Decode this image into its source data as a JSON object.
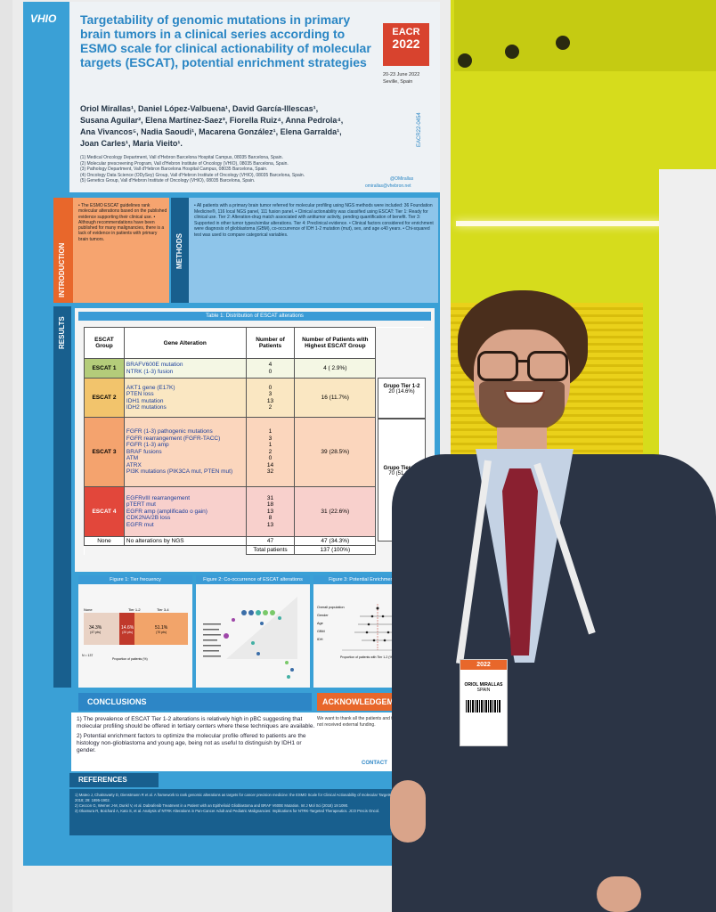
{
  "poster": {
    "logo_text": "VHIO",
    "title": "Targetability of genomic mutations in primary brain tumors in a clinical series according to ESMO scale for clinical actionability of molecular targets (ESCAT), potential enrichment strategies",
    "authors": "Oriol Mirallas¹, Daniel López-Valbuena¹, David García-Illescas¹, Susana Aguilar², Elena Martínez-Saez³, Fiorella Ruiz⁴, Anna Pedrola⁴, Ana Vivancos⁵, Nadia Saoudi¹, Macarena González¹, Elena Garralda¹, Joan Carles¹, Maria Vieito¹.",
    "affiliations": [
      "(1) Medical Oncology Department, Vall d'Hebron Barcelona Hospital Campus, 08035 Barcelona, Spain.",
      "(2) Molecular prescreening Program, Vall d'Hebron Institute of Oncology (VHIO), 08035 Barcelona, Spain.",
      "(3) Pathology Department, Vall d'Hebron Barcelona Hospital Campus, 08035 Barcelona, Spain.",
      "(4) Oncology Data Science (ODySey) Group, Vall d'Hebron Institute of Oncology (VHIO), 08035 Barcelona, Spain.",
      "(5) Genetics Group, Vall d'Hebron Institute of Oncology (VHIO), 08035 Barcelona, Spain."
    ],
    "eacr": {
      "name": "EACR",
      "year": "2022",
      "dates": "20-23 June 2022",
      "city": "Seville, Spain",
      "code": "EACR22-0454"
    },
    "twitter": "@OMirallas",
    "email": "omirallas@vhebron.net",
    "intro": {
      "label": "INTRODUCTION",
      "text": "• The ESMO ESCAT guidelines rank molecular alterations based on the published evidence supporting their clinical use. • Although recommendations have been published for many malignancies, there is a lack of evidence in patients with primary brain tumors."
    },
    "methods": {
      "label": "METHODS",
      "text": "• All patients with a primary brain tumor referred for molecular profiling using NGS methods were included: 36 Foundation Medicine®, 116 local NGS panel, 111 fusion panel. • Clinical actionability was classified using ESCAT: Tier 1: Ready for clinical use. Tier 2: Alteration-drug match associated with antitumor activity, pending quantification of benefit. Tier 3: Supported in other tumor types/similar alterations. Tier 4: Preclinical evidence. • Clinical factors considered for enrichment were diagnosis of glioblastoma (GBM), co-occurrence of IDH 1-2 mutation (mut), sex, and age ≤40 years. • Chi-squared test was used to compare categorical variables."
    },
    "results_label": "RESULTS",
    "table": {
      "title": "Table 1: Distribution of ESCAT alterations",
      "headers": [
        "ESCAT Group",
        "Gene Alteration",
        "Number of Patients",
        "Number of Patients with Highest ESCAT Group"
      ],
      "groups": [
        {
          "label": "ESCAT 1",
          "genes": "BRAFV600E mutation\nNTRK (1-3) fusion",
          "counts": "4\n0",
          "highest": "4 ( 2.9%)"
        },
        {
          "label": "ESCAT 2",
          "genes": "AKT1 gene (E17K)\nPTEN loss\nIDH1 mutation\nIDH2 mutations",
          "counts": "0\n3\n13\n2",
          "highest": "16 (11.7%)"
        },
        {
          "label": "ESCAT 3",
          "genes": "FGFR (1-3) pathogenic mutations\nFGFR rearrangement (FGFR-TACC)\nFGFR (1-3) amp\nBRAF fusions\nATM\nATRX\nPI3K mutations (PIK3CA mut, PTEN mut)",
          "counts": "1\n3\n1\n2\n0\n14\n32",
          "highest": "39 (28.5%)"
        },
        {
          "label": "ESCAT 4",
          "genes": "EGFRvIII rearrangement\npTERT mut\nEGFR amp (amplificado o gain)\nCDK2NA/2B loss\nEGFR mut",
          "counts": "31\n18\n13\n8\n13",
          "highest": "31 (22.6%)"
        }
      ],
      "none_row": {
        "label": "None",
        "genes": "No alterations by NGS",
        "count": "47",
        "highest": "47 (34.3%)"
      },
      "total_row": {
        "label": "Total patients",
        "value": "137 (100%)"
      },
      "tier_groups": [
        {
          "label": "Grupo Tier 1-2",
          "value": "20 (14.6%)"
        },
        {
          "label": "Grupo Tier 3-4",
          "value": "70 (51.1%)"
        }
      ]
    },
    "figures": {
      "fig1": {
        "title": "Figure 1: Tier frecuency",
        "cats": [
          "None",
          "Tier 1-2",
          "Tier 3-4"
        ],
        "pcts": [
          "34.3%",
          "14.6%",
          "51.1%"
        ],
        "ns": [
          "(47 pts)",
          "(20 pts)",
          "(70 pts)"
        ],
        "xlabel": "Proportion of patients (%)",
        "nlabel": "N = 137"
      },
      "fig2": {
        "title": "Figure 2: Co-occurrence of ESCAT alterations"
      },
      "fig3": {
        "title": "Figure 3: Potential Enrichment Factors",
        "rows": [
          "Overall population",
          "Gender",
          "Age",
          "GBM",
          "IDH"
        ],
        "xlabel": "Proportion of patients with Tier 1-2 (%)"
      }
    },
    "conclusions": {
      "heading": "CONCLUSIONS",
      "items": [
        "1) The prevalence of ESCAT Tier 1-2 alterations is relatively high in pBC suggesting that molecular profiling should be offered in tertiary centers where these techniques are available.",
        "2) Potential enrichment factors to optimize the molecular profile offered to patients are the histology non-glioblastoma and young age, being not as useful to distinguish by IDH1 or gender."
      ]
    },
    "acknowledgements": {
      "heading": "ACKNOWLEDGEMENTS",
      "text": "We want to thank all the patients and their... The study has not received external funding."
    },
    "contact_label": "CONTACT",
    "references": {
      "heading": "REFERENCES",
      "items": [
        "1) Mateo J, Chakravarty D, Dienstmann R et al. A framework to rank genomic alterations as targets for cancer precision medicine: the ESMO Scale for Clinical Actionability of molecular Targets (ESCAT). Ann Oncol 2018; 29: 1895-1902.",
        "2) Ceccon G, Werner J-M, Dunkl V, et al. Dabrafenib Treatment in a Patient with an Epithelioid Glioblastoma and BRAF V600E Mutation. Int J Mol Sci (2018) 19:1090.",
        "3) Okamura R, Boichard A, Kato S, et al. Analysis of NTRK Alterations in Pan-Cancer Adult and Pediatric Malignancies: Implications for NTRK-Targeted Therapeutics. JCO Precis Oncol."
      ]
    }
  },
  "badge": {
    "name": "ORIOL MIRALLAS",
    "role": "SPAIN",
    "year": "2022"
  },
  "colors": {
    "poster_blue": "#3aa0d6",
    "dark_blue": "#185f8e",
    "orange": "#e8672b",
    "yellow_wall": "#d6dc1c",
    "suit": "#2b3445",
    "tie": "#8a2030"
  }
}
